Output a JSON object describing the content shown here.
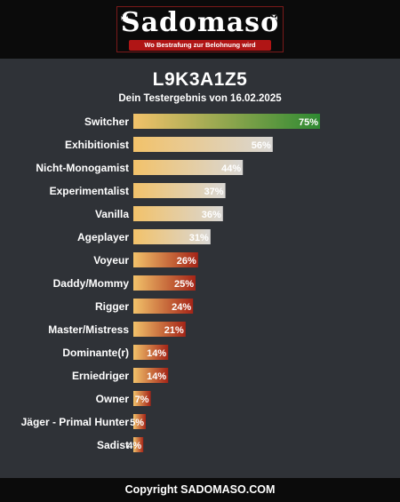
{
  "header": {
    "logo_text": "Sadomaso",
    "logo_tagline": "Wo Bestrafung zur Belohnung wird"
  },
  "title": "L9K3A1Z5",
  "subtitle": "Dein Testergebnis von 16.02.2025",
  "footer": {
    "copyright": "Copyright SADOMASO.COM"
  },
  "colors": {
    "background": "#2f3237",
    "band": "#0b0b0b",
    "bar_start": "#f2c26a",
    "top_end": "#2e8a32",
    "high_end": "#d9d7d4",
    "low_end": "#a52417"
  },
  "chart_data": {
    "type": "bar",
    "orientation": "horizontal",
    "categories": [
      "Switcher",
      "Exhibitionist",
      "Nicht-Monogamist",
      "Experimentalist",
      "Vanilla",
      "Ageplayer",
      "Voyeur",
      "Daddy/Mommy",
      "Rigger",
      "Master/Mistress",
      "Dominante(r)",
      "Erniedriger",
      "Owner",
      "Jäger - Primal Hunter",
      "Sadist"
    ],
    "values": [
      75,
      56,
      44,
      37,
      36,
      31,
      26,
      25,
      24,
      21,
      14,
      14,
      7,
      5,
      4
    ],
    "value_labels": [
      "75%",
      "56%",
      "44%",
      "37%",
      "36%",
      "31%",
      "26%",
      "25%",
      "24%",
      "21%",
      "14%",
      "14%",
      "7%",
      "5%",
      "4%"
    ],
    "xlim": [
      0,
      100
    ],
    "unit": "%"
  }
}
